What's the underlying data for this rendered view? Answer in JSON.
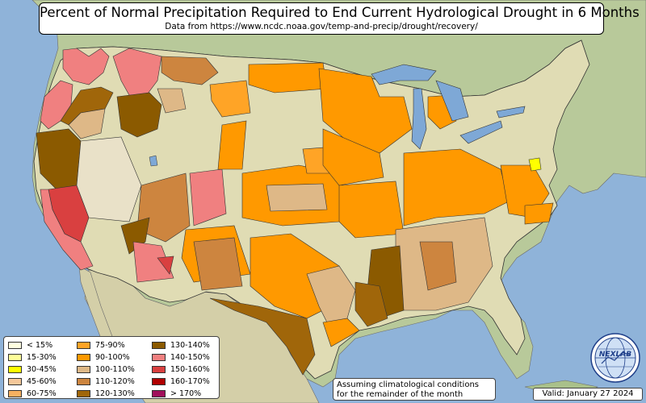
{
  "title": "Percent of Normal Precipitation Required to End Current Hydrological Drought in 6 Months",
  "subtitle": "Data from https://www.ncdc.noaa.gov/temp-and-precip/drought/recovery/",
  "legend": {
    "items": [
      {
        "label": "< 15%",
        "color": "#ffffe0"
      },
      {
        "label": "15-30%",
        "color": "#ffff99"
      },
      {
        "label": "30-45%",
        "color": "#ffff00"
      },
      {
        "label": "45-60%",
        "color": "#f5c89a"
      },
      {
        "label": "60-75%",
        "color": "#f7b060"
      },
      {
        "label": "75-90%",
        "color": "#ffa426"
      },
      {
        "label": "90-100%",
        "color": "#ff9900"
      },
      {
        "label": "100-110%",
        "color": "#deb887"
      },
      {
        "label": "110-120%",
        "color": "#cd853f"
      },
      {
        "label": "120-130%",
        "color": "#a0660a"
      },
      {
        "label": "130-140%",
        "color": "#8b5a00"
      },
      {
        "label": "140-150%",
        "color": "#f08080"
      },
      {
        "label": "150-160%",
        "color": "#d94040"
      },
      {
        "label": "160-170%",
        "color": "#b00000"
      },
      {
        "label": "> 170%",
        "color": "#a0105a"
      }
    ]
  },
  "note": {
    "line1": "Assuming climatological conditions",
    "line2": "for the remainder of the month"
  },
  "valid": "Valid: January 27 2024",
  "logo": {
    "text": "NEXLAB",
    "icon": "nexlab-globe-logo"
  },
  "map": {
    "colors": {
      "ocean": "#8fb3d9",
      "land": "#d7dcb0",
      "forest": "#a9c08a",
      "mountain": "#c9b99a",
      "lakes": "#7ea8d6"
    }
  }
}
